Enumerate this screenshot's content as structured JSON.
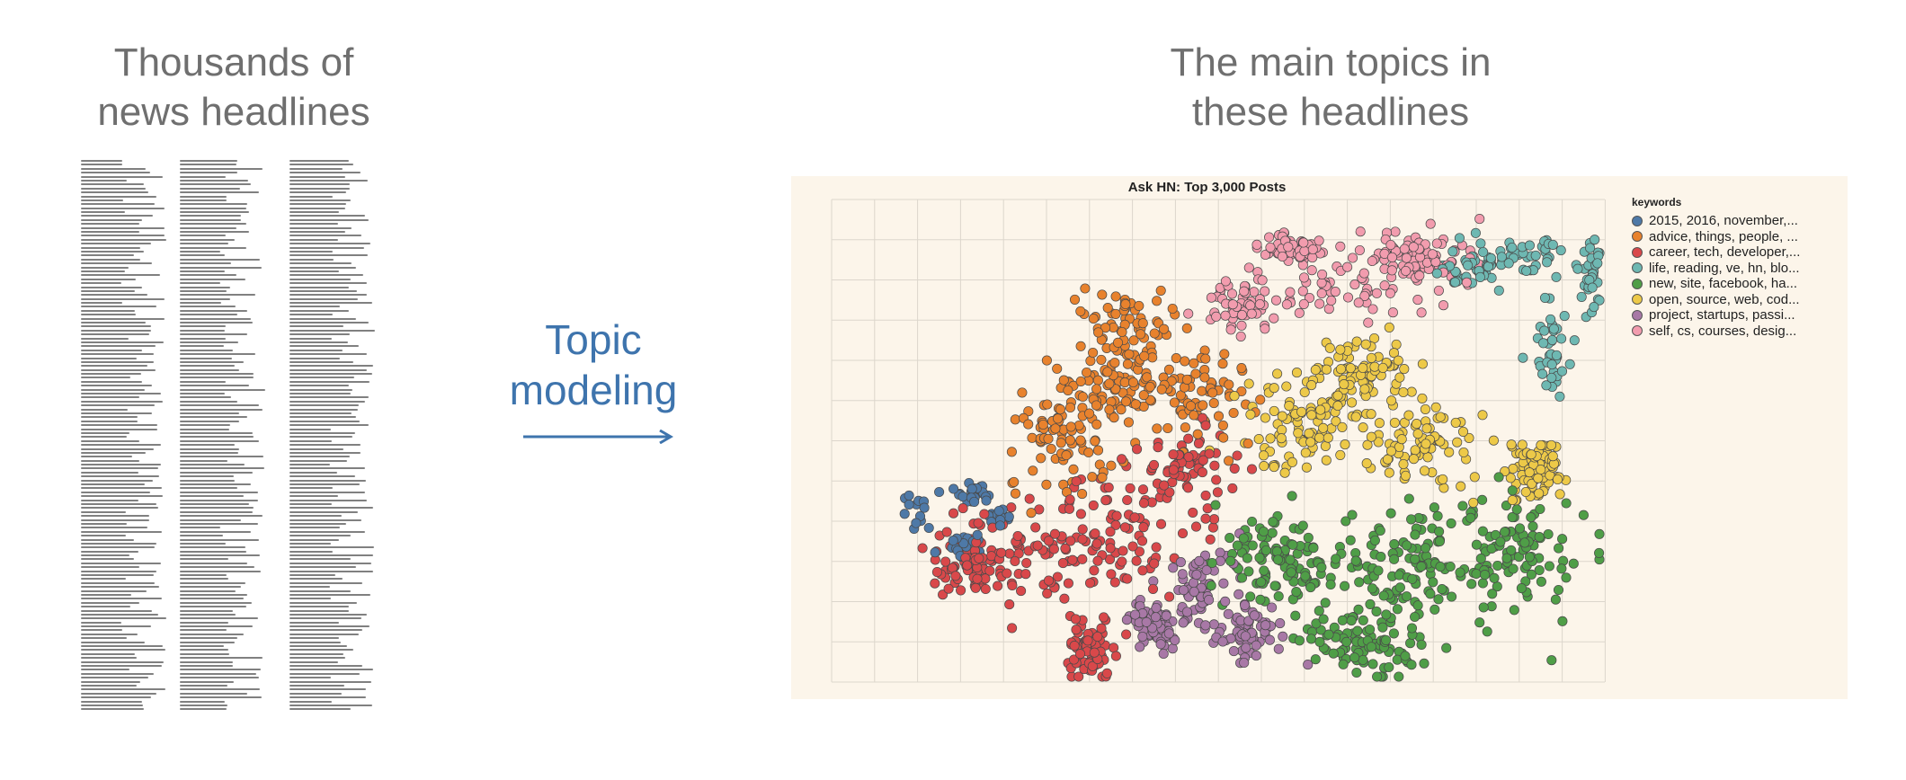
{
  "left_heading": {
    "line1": "Thousands of",
    "line2": "news headlines"
  },
  "right_heading": {
    "line1": "The main topics in",
    "line2": "these headlines"
  },
  "arrow_label": {
    "line1": "Topic",
    "line2": "modeling"
  },
  "colors": {
    "heading_text": "#6f6f6f",
    "arrow": "#3e74ad",
    "panel_background": "#fcf5ea",
    "grid": "#dcd6cc"
  },
  "chart_data": {
    "type": "scatter",
    "title": "Ask HN: Top 3,000 Posts",
    "legend_title": "keywords",
    "legend_placement": "right",
    "grid": true,
    "series": [
      {
        "name": "2015, 2016, november,...",
        "color": "#4e79a7"
      },
      {
        "name": "advice, things, people, ...",
        "color": "#e8822d"
      },
      {
        "name": "career, tech, developer,...",
        "color": "#d9484a"
      },
      {
        "name": "life, reading, ve, hn, blo...",
        "color": "#6eb8b2"
      },
      {
        "name": "new, site, facebook, ha...",
        "color": "#4f9e47"
      },
      {
        "name": "open, source, web, cod...",
        "color": "#edc948"
      },
      {
        "name": "project, startups, passi...",
        "color": "#a878a6"
      },
      {
        "name": "self, cs, courses, desig...",
        "color": "#f29cae"
      }
    ]
  }
}
